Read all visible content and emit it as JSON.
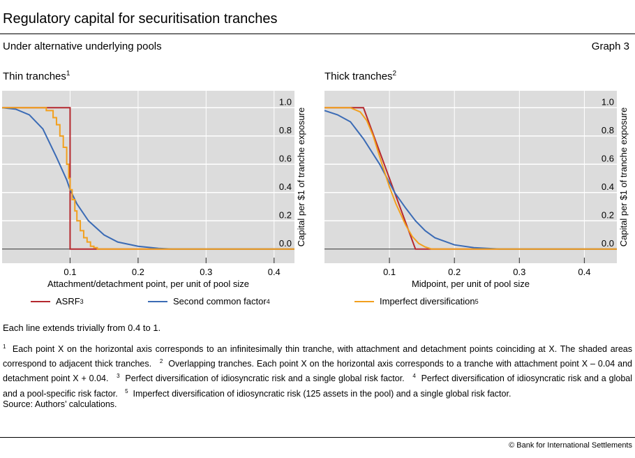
{
  "header": {
    "title": "Regulatory capital for securitisation tranches",
    "subtitle": "Under alternative underlying pools",
    "graph_number": "Graph 3"
  },
  "colors": {
    "asrf": "#b5282e",
    "second_common_factor": "#3b6bb5",
    "imperfect_diversification": "#f2a01e",
    "plot_bg": "#dcdcdc",
    "grid": "#ffffff"
  },
  "chart_data": [
    {
      "type": "line",
      "title": "Thin tranches",
      "title_sup": "1",
      "xlabel": "Attachment/detachment point, per unit of pool size",
      "ylabel": "Capital per $1 of tranche exposure",
      "xlim": [
        0,
        0.43
      ],
      "ylim": [
        -0.1,
        1.12
      ],
      "xticks": [
        "0.1",
        "0.2",
        "0.3",
        "0.4"
      ],
      "yticks": [
        "0.0",
        "0.2",
        "0.4",
        "0.6",
        "0.8",
        "1.0"
      ],
      "grid": true,
      "y_axis_side": "right",
      "series": [
        {
          "key": "asrf",
          "x": [
            0,
            0.1,
            0.1,
            0.43
          ],
          "y": [
            1,
            1,
            0,
            0
          ]
        },
        {
          "key": "second_common_factor",
          "x": [
            0,
            0.02,
            0.04,
            0.06,
            0.08,
            0.095,
            0.1,
            0.11,
            0.127,
            0.15,
            0.17,
            0.2,
            0.23,
            0.25,
            0.43
          ],
          "y": [
            1,
            0.99,
            0.95,
            0.85,
            0.65,
            0.49,
            0.42,
            0.32,
            0.2,
            0.1,
            0.05,
            0.02,
            0.005,
            0,
            0
          ],
          "step": false
        },
        {
          "key": "imperfect_diversification",
          "x": [
            0,
            0.055,
            0.065,
            0.075,
            0.08,
            0.085,
            0.09,
            0.095,
            0.098,
            0.1,
            0.103,
            0.107,
            0.11,
            0.115,
            0.12,
            0.125,
            0.13,
            0.135,
            0.14,
            0.43
          ],
          "y": [
            1,
            1,
            0.98,
            0.93,
            0.88,
            0.8,
            0.72,
            0.6,
            0.5,
            0.42,
            0.35,
            0.27,
            0.2,
            0.13,
            0.08,
            0.05,
            0.02,
            0.01,
            0,
            0
          ],
          "step": true
        }
      ]
    },
    {
      "type": "line",
      "title": "Thick tranches",
      "title_sup": "2",
      "xlabel": "Midpoint, per unit of pool size",
      "ylabel": "Capital per $1 of tranche exposure",
      "xlim": [
        0,
        0.45
      ],
      "ylim": [
        -0.1,
        1.12
      ],
      "xticks": [
        "0.1",
        "0.2",
        "0.3",
        "0.4"
      ],
      "yticks": [
        "0.0",
        "0.2",
        "0.4",
        "0.6",
        "0.8",
        "1.0"
      ],
      "grid": true,
      "y_axis_side": "right",
      "series": [
        {
          "key": "asrf",
          "x": [
            0,
            0.06,
            0.14,
            0.45
          ],
          "y": [
            1,
            1,
            0,
            0
          ]
        },
        {
          "key": "second_common_factor",
          "x": [
            0,
            0.02,
            0.04,
            0.06,
            0.085,
            0.108,
            0.125,
            0.14,
            0.155,
            0.17,
            0.2,
            0.23,
            0.27,
            0.45
          ],
          "y": [
            0.98,
            0.95,
            0.9,
            0.78,
            0.6,
            0.4,
            0.29,
            0.2,
            0.13,
            0.08,
            0.03,
            0.01,
            0,
            0
          ]
        },
        {
          "key": "imperfect_diversification",
          "x": [
            0,
            0.04,
            0.055,
            0.065,
            0.075,
            0.09,
            0.1,
            0.11,
            0.125,
            0.135,
            0.145,
            0.155,
            0.165,
            0.45
          ],
          "y": [
            1,
            1,
            0.97,
            0.91,
            0.8,
            0.58,
            0.44,
            0.32,
            0.17,
            0.09,
            0.04,
            0.015,
            0,
            0
          ]
        }
      ]
    }
  ],
  "legend": [
    {
      "key": "asrf",
      "label": "ASRF",
      "sup": "3"
    },
    {
      "key": "second_common_factor",
      "label": "Second common factor",
      "sup": "4"
    },
    {
      "key": "imperfect_diversification",
      "label": "Imperfect diversification",
      "sup": "5"
    }
  ],
  "note": "Each line extends trivially from 0.4 to 1.",
  "footnotes": [
    {
      "n": "1",
      "text": "Each point X on the horizontal axis corresponds to an infinitesimally thin tranche, with attachment and detachment points coinciding at X. The shaded areas correspond to adjacent thick tranches."
    },
    {
      "n": "2",
      "text": "Overlapping tranches. Each point X on the horizontal axis corresponds to a tranche with attachment point X – 0.04 and detachment point X + 0.04."
    },
    {
      "n": "3",
      "text": "Perfect diversification of idiosyncratic risk and a single global risk factor."
    },
    {
      "n": "4",
      "text": "Perfect diversification of idiosyncratic risk and a global and a pool-specific risk factor."
    },
    {
      "n": "5",
      "text": "Imperfect diversification of idiosyncratic risk (125 assets in the pool) and a single global risk factor."
    }
  ],
  "source": "Source: Authors’ calculations.",
  "copyright": "© Bank for International Settlements"
}
